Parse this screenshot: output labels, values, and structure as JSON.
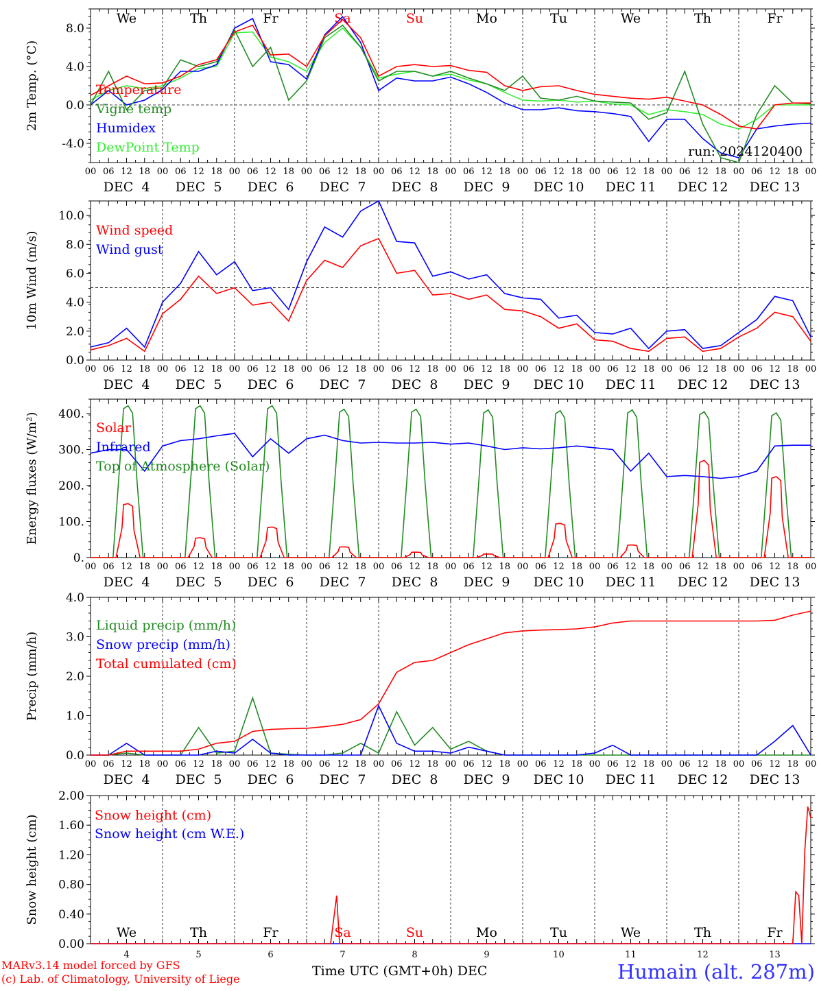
{
  "footer": {
    "credit_line1": "MARv3.14 model forced by GFS",
    "credit_line2": "(c) Lab. of Climatology, University of Liege",
    "xlabel": "Time UTC (GMT+0h)",
    "xlabel_suffix": "DEC",
    "station": "Humain (alt. 287m)"
  },
  "colors": {
    "red": "#ff0000",
    "green": "#228b22",
    "blue": "#0000ff",
    "light_green": "#33ee33",
    "weekend": "#ff0000"
  },
  "days": {
    "weekdays": [
      "We",
      "Th",
      "Fr",
      "Sa",
      "Su",
      "Mo",
      "Tu",
      "We",
      "Th",
      "Fr"
    ],
    "weekend_flags": [
      false,
      false,
      false,
      true,
      true,
      false,
      false,
      false,
      false,
      false
    ],
    "date_labels": [
      "DEC  4",
      "DEC  5",
      "DEC  6",
      "DEC  7",
      "DEC  8",
      "DEC  9",
      "DEC 10",
      "DEC 11",
      "DEC 12",
      "DEC 13"
    ],
    "hour_ticks": [
      "00",
      "06",
      "12",
      "18"
    ],
    "final_tick": "00",
    "bottom_day_numbers": [
      "4",
      "5",
      "6",
      "7",
      "8",
      "9",
      "10",
      "11",
      "12",
      "13"
    ]
  },
  "chart_data": [
    {
      "type": "line",
      "ylabel": "2m Temp. (°C)",
      "ylim": [
        -6,
        10
      ],
      "yticks": [
        "-4.0",
        "0.0",
        "4.0",
        "8.0"
      ],
      "yticks_values": [
        -4,
        0,
        4,
        8
      ],
      "reference_line": 0,
      "annotation": "run: 2024120400",
      "x_hours": [
        0,
        6,
        12,
        18,
        24,
        30,
        36,
        42,
        48,
        54,
        60,
        66,
        72,
        78,
        84,
        90,
        96,
        102,
        108,
        114,
        120,
        126,
        132,
        138,
        144,
        150,
        156,
        162,
        168,
        174,
        180,
        186,
        192,
        198,
        204,
        210,
        216,
        222,
        228,
        234,
        240
      ],
      "series": [
        {
          "name": "Temperature",
          "color": "red",
          "values": [
            1.0,
            2.0,
            3.0,
            2.2,
            2.3,
            3.0,
            4.2,
            4.7,
            7.6,
            8.3,
            5.2,
            5.3,
            4.0,
            7.2,
            8.9,
            7.0,
            3.0,
            4.0,
            4.2,
            4.0,
            4.1,
            3.6,
            3.4,
            2.0,
            1.5,
            1.9,
            2.0,
            1.5,
            1.1,
            0.9,
            0.7,
            0.6,
            0.8,
            0.4,
            0.0,
            -1.0,
            -2.2,
            -2.5,
            0.0,
            0.2,
            0.2
          ]
        },
        {
          "name": "Vigne temp",
          "color": "green",
          "values": [
            0.0,
            3.5,
            -0.5,
            1.5,
            1.8,
            4.7,
            4.0,
            4.5,
            7.8,
            4.0,
            6.0,
            0.5,
            2.5,
            7.0,
            8.3,
            6.0,
            2.5,
            3.5,
            3.5,
            3.0,
            3.5,
            2.8,
            2.2,
            1.5,
            3.0,
            0.7,
            0.5,
            0.9,
            0.4,
            0.3,
            0.2,
            -1.5,
            -0.8,
            3.5,
            -2.0,
            -5.5,
            -6.0,
            -1.0,
            2.0,
            0.2,
            0.1
          ]
        },
        {
          "name": "Humidex",
          "color": "blue",
          "values": [
            0.0,
            1.5,
            0.0,
            0.5,
            1.6,
            3.5,
            3.5,
            4.2,
            8.0,
            9.0,
            4.5,
            4.2,
            2.7,
            7.3,
            9.2,
            6.5,
            1.5,
            2.8,
            2.5,
            2.5,
            2.9,
            2.2,
            1.3,
            0.2,
            -0.5,
            -0.5,
            -0.3,
            -0.6,
            -0.7,
            -0.9,
            -1.2,
            -3.8,
            -1.5,
            -1.5,
            -3.5,
            -5.0,
            -5.5,
            -2.5,
            -2.2,
            -2.0,
            -1.9
          ]
        },
        {
          "name": "DewPoint Temp",
          "color": "light_green",
          "values": [
            0.5,
            1.5,
            2.0,
            1.7,
            2.0,
            2.8,
            3.8,
            4.0,
            7.5,
            7.6,
            5.0,
            4.5,
            3.5,
            6.5,
            8.0,
            6.0,
            2.8,
            3.2,
            3.5,
            3.0,
            3.2,
            2.6,
            2.2,
            1.3,
            0.5,
            0.4,
            0.5,
            0.3,
            0.4,
            0.1,
            0.0,
            -1.0,
            -0.5,
            -0.7,
            -1.0,
            -2.0,
            -2.5,
            -1.5,
            0.0,
            0.0,
            0.0
          ]
        }
      ],
      "legend_position": "left"
    },
    {
      "type": "line",
      "ylabel": "10m Wind (m/s)",
      "ylim": [
        0,
        11
      ],
      "yticks": [
        "0.0",
        "2.0",
        "4.0",
        "6.0",
        "8.0",
        "10.0"
      ],
      "yticks_values": [
        0,
        2,
        4,
        6,
        8,
        10
      ],
      "reference_line": 5,
      "x_hours": [
        0,
        6,
        12,
        18,
        24,
        30,
        36,
        42,
        48,
        54,
        60,
        66,
        72,
        78,
        84,
        90,
        96,
        102,
        108,
        114,
        120,
        126,
        132,
        138,
        144,
        150,
        156,
        162,
        168,
        174,
        180,
        186,
        192,
        198,
        204,
        210,
        216,
        222,
        228,
        234,
        240
      ],
      "series": [
        {
          "name": "Wind speed",
          "color": "red",
          "values": [
            0.7,
            1.0,
            1.5,
            0.6,
            3.2,
            4.2,
            5.8,
            4.6,
            5.0,
            3.8,
            4.0,
            2.7,
            5.5,
            6.9,
            6.4,
            7.9,
            8.4,
            6.0,
            6.2,
            4.5,
            4.6,
            4.2,
            4.5,
            3.5,
            3.4,
            3.0,
            2.2,
            2.5,
            1.4,
            1.3,
            0.8,
            0.6,
            1.5,
            1.6,
            0.6,
            0.8,
            1.6,
            2.2,
            3.3,
            3.0,
            1.3
          ]
        },
        {
          "name": "Wind gust",
          "color": "blue",
          "values": [
            0.9,
            1.2,
            2.2,
            0.9,
            4.0,
            5.3,
            7.5,
            5.9,
            6.8,
            4.8,
            5.0,
            3.5,
            6.8,
            9.2,
            8.5,
            10.3,
            11.0,
            8.2,
            8.1,
            5.8,
            6.1,
            5.6,
            5.9,
            4.6,
            4.3,
            4.2,
            2.9,
            3.1,
            1.9,
            1.8,
            2.2,
            0.8,
            2.0,
            2.1,
            0.8,
            1.0,
            1.9,
            2.8,
            4.4,
            4.1,
            1.6
          ]
        }
      ],
      "legend_position": "top-left"
    },
    {
      "type": "line",
      "ylabel": "Energy fluxes (W/m²)",
      "ylim": [
        0,
        440
      ],
      "yticks": [
        "0.",
        "100.",
        "200.",
        "300.",
        "400."
      ],
      "yticks_values": [
        0,
        100,
        200,
        300,
        400
      ],
      "series": [
        {
          "name": "Solar",
          "color": "red",
          "daily_peaks": [
            150,
            55,
            85,
            30,
            15,
            10,
            95,
            35,
            270,
            225
          ]
        },
        {
          "name": "Infrared",
          "color": "blue",
          "x_hours": [
            0,
            6,
            12,
            18,
            24,
            30,
            36,
            42,
            48,
            54,
            60,
            66,
            72,
            78,
            84,
            90,
            96,
            102,
            108,
            114,
            120,
            126,
            132,
            138,
            144,
            150,
            156,
            162,
            168,
            174,
            180,
            186,
            192,
            198,
            204,
            210,
            216,
            222,
            228,
            234,
            240
          ],
          "values": [
            290,
            300,
            300,
            240,
            310,
            325,
            330,
            338,
            345,
            280,
            330,
            290,
            330,
            340,
            325,
            318,
            320,
            318,
            318,
            320,
            315,
            318,
            310,
            300,
            305,
            302,
            305,
            310,
            305,
            300,
            240,
            290,
            225,
            228,
            225,
            220,
            225,
            240,
            310,
            312,
            312
          ]
        },
        {
          "name": "Top of Atmosphere (Solar)",
          "color": "green",
          "daily_peaks": [
            422,
            422,
            422,
            412,
            412,
            410,
            408,
            410,
            405,
            402
          ]
        }
      ],
      "legend_position": "top-left"
    },
    {
      "type": "line",
      "ylabel": "Precip (mm/h)",
      "ylim": [
        0,
        4
      ],
      "yticks": [
        "0.0",
        "1.0",
        "2.0",
        "3.0",
        "4.0"
      ],
      "yticks_values": [
        0,
        1,
        2,
        3,
        4
      ],
      "x_hours": [
        0,
        6,
        12,
        18,
        24,
        30,
        36,
        42,
        48,
        54,
        60,
        66,
        72,
        78,
        84,
        90,
        96,
        102,
        108,
        114,
        120,
        126,
        132,
        138,
        144,
        150,
        156,
        162,
        168,
        174,
        180,
        186,
        192,
        198,
        204,
        210,
        216,
        222,
        228,
        234,
        240
      ],
      "series": [
        {
          "name": "Liquid precip (mm/h)",
          "color": "green",
          "values": [
            0,
            0,
            0.05,
            0,
            0,
            0,
            0.7,
            0.05,
            0.1,
            1.45,
            0.05,
            0.02,
            0,
            0,
            0.05,
            0.3,
            0.05,
            1.1,
            0.25,
            0.7,
            0.15,
            0.35,
            0.1,
            0,
            0,
            0,
            0,
            0,
            0,
            0,
            0,
            0,
            0,
            0,
            0,
            0,
            0,
            0,
            0,
            0,
            0
          ]
        },
        {
          "name": "Snow precip (mm/h)",
          "color": "blue",
          "values": [
            0,
            0,
            0.3,
            0,
            0,
            0,
            0,
            0.1,
            0.05,
            0.4,
            0.05,
            0,
            0,
            0,
            0,
            0,
            1.25,
            0.3,
            0.1,
            0.1,
            0.05,
            0.2,
            0.1,
            0,
            0,
            0,
            0,
            0,
            0.05,
            0.25,
            0,
            0,
            0,
            0,
            0,
            0,
            0,
            0,
            0.35,
            0.75,
            0
          ]
        },
        {
          "name": "Total cumulated (cm)",
          "color": "red",
          "values": [
            0,
            0,
            0.1,
            0.1,
            0.1,
            0.1,
            0.15,
            0.3,
            0.35,
            0.6,
            0.65,
            0.67,
            0.68,
            0.72,
            0.78,
            0.9,
            1.3,
            2.1,
            2.35,
            2.4,
            2.6,
            2.8,
            2.95,
            3.1,
            3.15,
            3.17,
            3.18,
            3.2,
            3.25,
            3.35,
            3.4,
            3.4,
            3.4,
            3.4,
            3.4,
            3.4,
            3.4,
            3.4,
            3.42,
            3.55,
            3.65
          ]
        }
      ],
      "legend_position": "top-left"
    },
    {
      "type": "line",
      "ylabel": "Snow height (cm)",
      "ylim": [
        0,
        2
      ],
      "yticks": [
        "0.00",
        "0.40",
        "0.80",
        "1.20",
        "1.60",
        "2.00"
      ],
      "yticks_values": [
        0,
        0.4,
        0.8,
        1.2,
        1.6,
        2.0
      ],
      "series": [
        {
          "name": "Snow height (cm)",
          "color": "red",
          "x_hours": [
            0,
            80,
            82,
            83,
            84,
            234,
            235,
            236,
            237,
            238,
            239,
            240
          ],
          "values": [
            0,
            0,
            0.65,
            0,
            0,
            0,
            0.7,
            0.65,
            0,
            1.25,
            1.85,
            1.7
          ]
        },
        {
          "name": "Snow height (cm W.E.)",
          "color": "blue",
          "x_hours": [
            0,
            240
          ],
          "values": [
            0,
            0
          ]
        }
      ],
      "legend_position": "top-left"
    }
  ]
}
